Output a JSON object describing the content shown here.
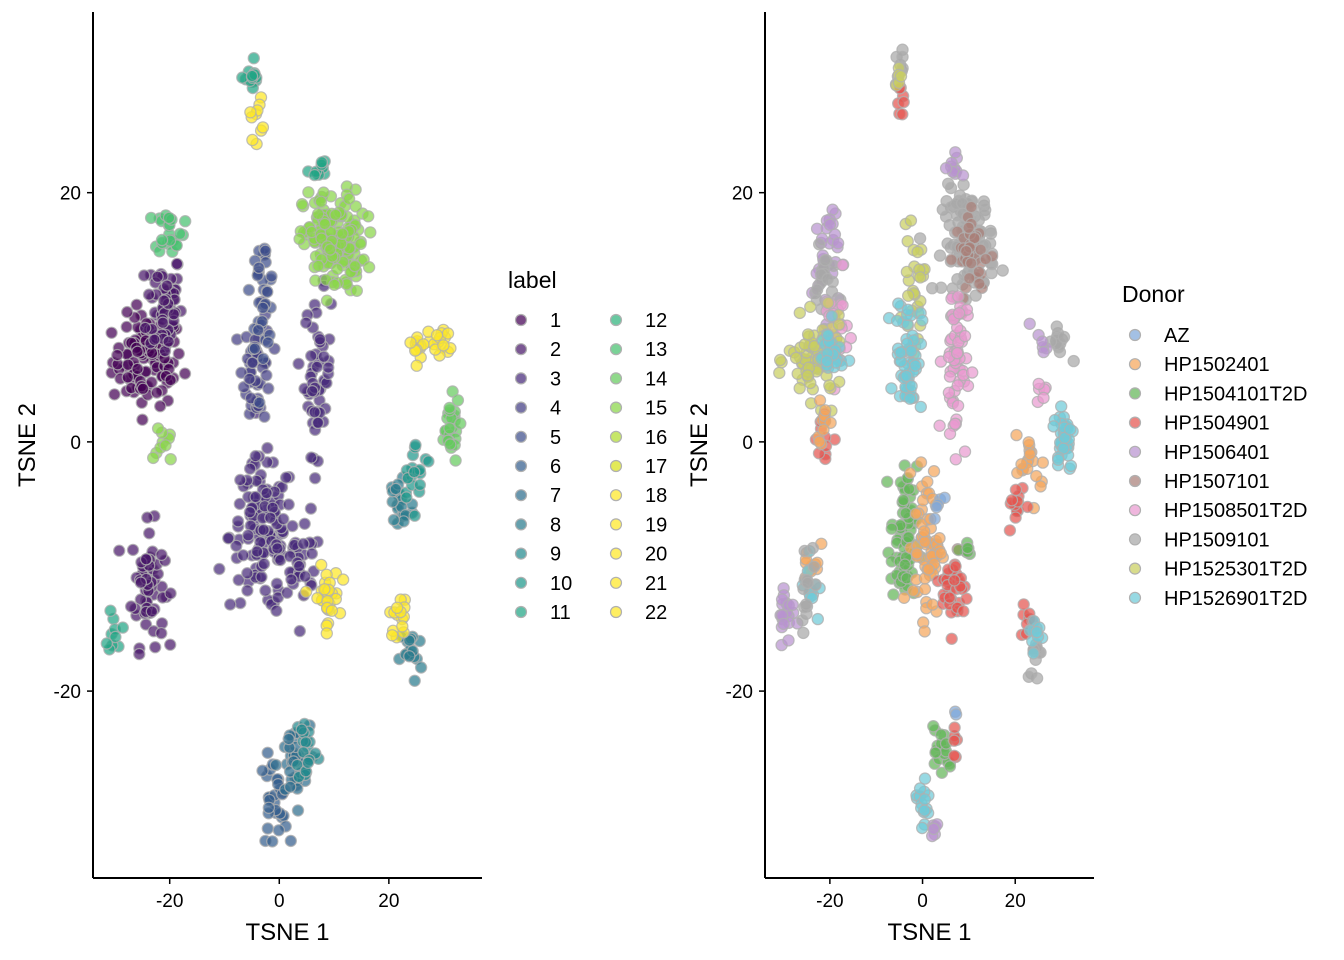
{
  "chart_data": [
    {
      "type": "scatter",
      "xlabel": "TSNE 1",
      "ylabel": "TSNE 2",
      "xlim": [
        -34,
        37
      ],
      "ylim": [
        -35,
        34.5
      ],
      "xticks": [
        -20,
        0,
        20
      ],
      "yticks": [
        -20,
        0,
        20
      ],
      "grid": false,
      "legend": {
        "title": "label",
        "placement": "right",
        "columns": 2,
        "entries": [
          "1",
          "2",
          "3",
          "4",
          "5",
          "6",
          "7",
          "8",
          "9",
          "10",
          "11",
          "12",
          "13",
          "14",
          "15",
          "16",
          "17",
          "18",
          "19",
          "20",
          "21",
          "22"
        ]
      },
      "colors": [
        "#440154",
        "#481769",
        "#472A7A",
        "#433D84",
        "#3D4E8A",
        "#355E8D",
        "#2E6D8E",
        "#297B8E",
        "#23898E",
        "#1F978B",
        "#21A585",
        "#2EB37C",
        "#46C06F",
        "#65CB5E",
        "#89D548",
        "#B0DD2F",
        "#D8E219",
        "#FDE725",
        "#FDE725",
        "#FDE725",
        "#FDE725",
        "#FDE725"
      ],
      "clusters": [
        {
          "label": "1",
          "cx": -24,
          "cy": 6.5,
          "sx": 3.2,
          "sy": 1.8,
          "n": 110
        },
        {
          "label": "2",
          "cx": -21,
          "cy": 11,
          "sx": 1.6,
          "sy": 2.2,
          "n": 60
        },
        {
          "label": "2",
          "cx": -24,
          "cy": -11.5,
          "sx": 1.5,
          "sy": 2.4,
          "n": 65
        },
        {
          "label": "3",
          "cx": 7,
          "cy": 5.5,
          "sx": 1.2,
          "sy": 3.2,
          "n": 55
        },
        {
          "label": "3",
          "cx": -3,
          "cy": -7.5,
          "sx": 3.0,
          "sy": 3.0,
          "n": 130
        },
        {
          "label": "3",
          "cx": 4,
          "cy": -10,
          "sx": 2.0,
          "sy": 1.4,
          "n": 30
        },
        {
          "label": "4",
          "cx": -4,
          "cy": 6,
          "sx": 1.3,
          "sy": 2.2,
          "n": 45
        },
        {
          "label": "5",
          "cx": -3,
          "cy": 12,
          "sx": 1.1,
          "sy": 2.2,
          "n": 35
        },
        {
          "label": "6",
          "cx": -1,
          "cy": -29,
          "sx": 1.3,
          "sy": 1.8,
          "n": 30
        },
        {
          "label": "7",
          "cx": 2.5,
          "cy": -26,
          "sx": 1.5,
          "sy": 1.6,
          "n": 35
        },
        {
          "label": "8",
          "cx": 24,
          "cy": -17,
          "sx": 1.0,
          "sy": 1.2,
          "n": 18
        },
        {
          "label": "8",
          "cx": 22,
          "cy": -5,
          "sx": 1.3,
          "sy": 1.6,
          "n": 20
        },
        {
          "label": "9",
          "cx": 5,
          "cy": -24.5,
          "sx": 1.0,
          "sy": 1.5,
          "n": 22
        },
        {
          "label": "10",
          "cx": 25,
          "cy": -2.5,
          "sx": 1.5,
          "sy": 1.2,
          "n": 20
        },
        {
          "label": "11",
          "cx": -5,
          "cy": 29,
          "sx": 0.6,
          "sy": 1.0,
          "n": 14
        },
        {
          "label": "11",
          "cx": 7,
          "cy": 22,
          "sx": 0.8,
          "sy": 0.5,
          "n": 10
        },
        {
          "label": "11",
          "cx": -30,
          "cy": -15,
          "sx": 0.6,
          "sy": 1.0,
          "n": 10
        },
        {
          "label": "13",
          "cx": -20,
          "cy": 17,
          "sx": 1.3,
          "sy": 0.9,
          "n": 25
        },
        {
          "label": "14",
          "cx": 31,
          "cy": 1,
          "sx": 1.0,
          "sy": 1.3,
          "n": 28
        },
        {
          "label": "15",
          "cx": 10,
          "cy": 16,
          "sx": 2.8,
          "sy": 2.1,
          "n": 150
        },
        {
          "label": "15",
          "cx": -21,
          "cy": 0,
          "sx": 0.9,
          "sy": 1.0,
          "n": 10
        },
        {
          "label": "18",
          "cx": -4.5,
          "cy": 26,
          "sx": 0.7,
          "sy": 0.8,
          "n": 10
        },
        {
          "label": "19",
          "cx": 29.5,
          "cy": 8,
          "sx": 1.2,
          "sy": 0.7,
          "n": 16
        },
        {
          "label": "19",
          "cx": 22,
          "cy": -14,
          "sx": 0.9,
          "sy": 0.8,
          "n": 15
        },
        {
          "label": "21",
          "cx": 8.5,
          "cy": -12.5,
          "sx": 1.2,
          "sy": 1.2,
          "n": 30
        },
        {
          "label": "21",
          "cx": 25.5,
          "cy": 8,
          "sx": 0.9,
          "sy": 0.6,
          "n": 12
        }
      ]
    },
    {
      "type": "scatter",
      "xlabel": "TSNE 1",
      "ylabel": "TSNE 2",
      "xlim": [
        -34,
        37
      ],
      "ylim": [
        -35,
        34.5
      ],
      "xticks": [
        -20,
        0,
        20
      ],
      "yticks": [
        -20,
        0,
        20
      ],
      "grid": false,
      "legend": {
        "title": "Donor",
        "placement": "right",
        "columns": 1,
        "entries": [
          "AZ",
          "HP1502401",
          "HP1504101T2D",
          "HP1504901",
          "HP1506401",
          "HP1507101",
          "HP1508501T2D",
          "HP1509101",
          "HP1525301T2D",
          "HP1526901T2D"
        ]
      },
      "colors": [
        "#7FA7D9",
        "#F5A65B",
        "#63B657",
        "#E5544F",
        "#B993D0",
        "#A97F78",
        "#E99AD0",
        "#A8A8A8",
        "#C9CF5F",
        "#6FCBD8"
      ],
      "clusters": [
        {
          "label": "HP1509101",
          "cx": 10,
          "cy": 16,
          "sx": 2.8,
          "sy": 2.1,
          "n": 110
        },
        {
          "label": "HP1507101",
          "cx": 11,
          "cy": 15,
          "sx": 2.0,
          "sy": 1.6,
          "n": 40
        },
        {
          "label": "HP1506401",
          "cx": -21,
          "cy": 15,
          "sx": 1.4,
          "sy": 2.5,
          "n": 35
        },
        {
          "label": "HP1509101",
          "cx": -21,
          "cy": 12.5,
          "sx": 1.2,
          "sy": 1.5,
          "n": 20
        },
        {
          "label": "HP1508501T2D",
          "cx": -19,
          "cy": 9,
          "sx": 1.5,
          "sy": 2.0,
          "n": 30
        },
        {
          "label": "HP1525301T2D",
          "cx": -23,
          "cy": 6.5,
          "sx": 3.0,
          "sy": 1.6,
          "n": 80
        },
        {
          "label": "HP1526901T2D",
          "cx": -20,
          "cy": 7,
          "sx": 1.4,
          "sy": 1.2,
          "n": 25
        },
        {
          "label": "HP1504901",
          "cx": -21,
          "cy": 0.5,
          "sx": 0.9,
          "sy": 1.6,
          "n": 12
        },
        {
          "label": "HP1502401",
          "cx": -21.5,
          "cy": 1.5,
          "sx": 0.8,
          "sy": 1.2,
          "n": 10
        },
        {
          "label": "HP1525301T2D",
          "cx": -2,
          "cy": 12,
          "sx": 1.1,
          "sy": 2.2,
          "n": 30
        },
        {
          "label": "HP1526901T2D",
          "cx": -3,
          "cy": 7,
          "sx": 1.4,
          "sy": 2.3,
          "n": 55
        },
        {
          "label": "HP1508501T2D",
          "cx": 7,
          "cy": 6.5,
          "sx": 1.3,
          "sy": 3.4,
          "n": 60
        },
        {
          "label": "HP1506401",
          "cx": 6.5,
          "cy": 22,
          "sx": 0.8,
          "sy": 0.6,
          "n": 10
        },
        {
          "label": "HP1509101",
          "cx": -5,
          "cy": 30,
          "sx": 0.5,
          "sy": 0.7,
          "n": 8
        },
        {
          "label": "HP1504901",
          "cx": -5,
          "cy": 27,
          "sx": 0.5,
          "sy": 0.8,
          "n": 7
        },
        {
          "label": "HP1525301T2D",
          "cx": -5,
          "cy": 29,
          "sx": 0.5,
          "sy": 0.8,
          "n": 5
        },
        {
          "label": "HP1504101T2D",
          "cx": -4,
          "cy": -8,
          "sx": 1.4,
          "sy": 3.0,
          "n": 65
        },
        {
          "label": "HP1502401",
          "cx": 1,
          "cy": -8,
          "sx": 1.5,
          "sy": 3.0,
          "n": 65
        },
        {
          "label": "HP1504901",
          "cx": 7,
          "cy": -12,
          "sx": 1.4,
          "sy": 1.6,
          "n": 35
        },
        {
          "label": "HP1504101T2D",
          "cx": 9,
          "cy": -8.5,
          "sx": 1.2,
          "sy": 0.5,
          "n": 8
        },
        {
          "label": "HP1526901T2D",
          "cx": 30.5,
          "cy": 0.5,
          "sx": 1.1,
          "sy": 1.4,
          "n": 35
        },
        {
          "label": "HP1502401",
          "cx": 23.5,
          "cy": -2,
          "sx": 1.7,
          "sy": 1.3,
          "n": 20
        },
        {
          "label": "HP1504901",
          "cx": 20.5,
          "cy": -5,
          "sx": 1.0,
          "sy": 1.0,
          "n": 12
        },
        {
          "label": "HP1509101",
          "cx": 29.5,
          "cy": 8,
          "sx": 1.1,
          "sy": 0.7,
          "n": 12
        },
        {
          "label": "HP1508501T2D",
          "cx": 26,
          "cy": 4,
          "sx": 0.6,
          "sy": 0.5,
          "n": 6
        },
        {
          "label": "HP1506401",
          "cx": 25.5,
          "cy": 8,
          "sx": 0.7,
          "sy": 0.7,
          "n": 6
        },
        {
          "label": "HP1504901",
          "cx": 22.5,
          "cy": -14,
          "sx": 0.8,
          "sy": 0.9,
          "n": 8
        },
        {
          "label": "HP1509101",
          "cx": 24.5,
          "cy": -17,
          "sx": 0.9,
          "sy": 1.2,
          "n": 14
        },
        {
          "label": "HP1526901T2D",
          "cx": 24.5,
          "cy": -15.5,
          "sx": 0.9,
          "sy": 0.9,
          "n": 8
        },
        {
          "label": "HP1506401",
          "cx": -29.5,
          "cy": -13.5,
          "sx": 0.9,
          "sy": 1.3,
          "n": 20
        },
        {
          "label": "HP1502401",
          "cx": -24,
          "cy": -9.5,
          "sx": 0.9,
          "sy": 1.3,
          "n": 12
        },
        {
          "label": "HP1526901T2D",
          "cx": -24,
          "cy": -12,
          "sx": 0.8,
          "sy": 1.3,
          "n": 12
        },
        {
          "label": "HP1509101",
          "cx": -25,
          "cy": -11,
          "sx": 1.2,
          "sy": 1.6,
          "n": 14
        },
        {
          "label": "HP1504101T2D",
          "cx": 4,
          "cy": -25,
          "sx": 1.2,
          "sy": 1.0,
          "n": 18
        },
        {
          "label": "HP1526901T2D",
          "cx": 0,
          "cy": -29,
          "sx": 0.9,
          "sy": 1.3,
          "n": 16
        },
        {
          "label": "HP1506401",
          "cx": 2.5,
          "cy": -31,
          "sx": 0.5,
          "sy": 0.6,
          "n": 7
        },
        {
          "label": "HP1504901",
          "cx": 7,
          "cy": -24,
          "sx": 0.5,
          "sy": 0.8,
          "n": 6
        },
        {
          "label": "AZ",
          "cx": 3.5,
          "cy": -4.5,
          "sx": 0.6,
          "sy": 0.7,
          "n": 5
        },
        {
          "label": "AZ",
          "cx": 7,
          "cy": -22,
          "sx": 0.3,
          "sy": 0.3,
          "n": 2
        }
      ]
    }
  ]
}
